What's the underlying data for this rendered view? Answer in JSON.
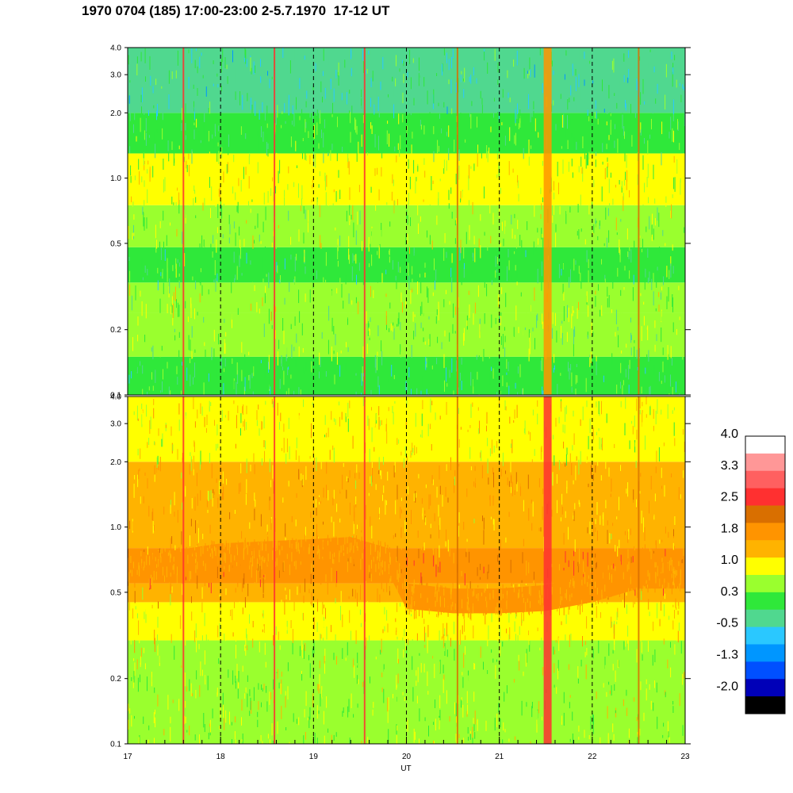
{
  "header": {
    "title": "1970 0704 (185) 17:00-23:00 2-5.7.1970  17-12 UT"
  },
  "chart_data": {
    "type": "heatmap",
    "title": "1970 0704 (185) 17:00-23:00 2-5.7.1970  17-12 UT",
    "xlabel": "UT",
    "xlim": [
      17,
      23
    ],
    "x_ticks": [
      "17",
      "18",
      "19",
      "20",
      "21",
      "22",
      "23"
    ],
    "x_minor_step": 0.2,
    "grid_vertical_dashed": [
      18,
      19,
      20,
      21,
      22
    ],
    "panels": [
      {
        "name": "",
        "y_scale": "log",
        "ylim": [
          0.1,
          4.0
        ],
        "y_ticks": [
          {
            "value": 0.1,
            "label": "0.1"
          },
          {
            "value": 0.2,
            "label": "0.2"
          },
          {
            "value": 0.5,
            "label": "0.5"
          },
          {
            "value": 1.0,
            "label": "1.0"
          },
          {
            "value": 2.0,
            "label": "2.0"
          },
          {
            "value": 3.0,
            "label": "3.0"
          },
          {
            "value": 4.0,
            "label": "4.0"
          }
        ],
        "bands": [
          {
            "y0": 0.1,
            "y1": 0.15,
            "level": 0.3
          },
          {
            "y0": 0.15,
            "y1": 0.24,
            "level": 0.7
          },
          {
            "y0": 0.24,
            "y1": 0.33,
            "level": 0.85
          },
          {
            "y0": 0.33,
            "y1": 0.48,
            "level": 0.4
          },
          {
            "y0": 0.48,
            "y1": 0.75,
            "level": 0.8
          },
          {
            "y0": 0.75,
            "y1": 1.3,
            "level": 1.0
          },
          {
            "y0": 1.3,
            "y1": 2.0,
            "level": 0.6
          },
          {
            "y0": 2.0,
            "y1": 4.0,
            "level": 0.1
          }
        ],
        "spikes": [
          {
            "x": 17.6,
            "level": 2.5
          },
          {
            "x": 18.58,
            "level": 2.5
          },
          {
            "x": 19.55,
            "level": 2.5
          },
          {
            "x": 20.55,
            "level": 2.3
          },
          {
            "x": 21.52,
            "level": 2.0
          },
          {
            "x": 22.5,
            "level": 2.2
          }
        ]
      },
      {
        "name": "",
        "y_scale": "log",
        "ylim": [
          0.1,
          4.0
        ],
        "y_ticks": [
          {
            "value": 0.1,
            "label": "0.1"
          },
          {
            "value": 0.2,
            "label": "0.2"
          },
          {
            "value": 0.5,
            "label": "0.5"
          },
          {
            "value": 1.0,
            "label": "1.0"
          },
          {
            "value": 2.0,
            "label": "2.0"
          },
          {
            "value": 3.0,
            "label": "3.0"
          },
          {
            "value": 4.0,
            "label": "4.0"
          }
        ],
        "bands": [
          {
            "y0": 0.1,
            "y1": 0.3,
            "level": 0.9
          },
          {
            "y0": 0.3,
            "y1": 0.45,
            "level": 1.3
          },
          {
            "y0": 0.45,
            "y1": 0.55,
            "level": 1.6
          },
          {
            "y0": 0.55,
            "y1": 0.8,
            "level": 2.1
          },
          {
            "y0": 0.8,
            "y1": 2.0,
            "level": 1.6
          },
          {
            "y0": 2.0,
            "y1": 4.0,
            "level": 1.2
          }
        ],
        "ridge": {
          "level": 2.1,
          "x": [
            17.0,
            17.5,
            18.0,
            18.5,
            19.0,
            19.4,
            19.8,
            20.0,
            20.5,
            21.0,
            21.5,
            22.0,
            22.5,
            23.0
          ],
          "lo": [
            0.56,
            0.6,
            0.66,
            0.68,
            0.7,
            0.72,
            0.62,
            0.42,
            0.4,
            0.4,
            0.41,
            0.45,
            0.52,
            0.52
          ],
          "hi": [
            0.72,
            0.78,
            0.84,
            0.86,
            0.88,
            0.9,
            0.8,
            0.55,
            0.52,
            0.52,
            0.54,
            0.6,
            0.7,
            0.68
          ]
        },
        "spikes": [
          {
            "x": 17.6,
            "level": 2.5
          },
          {
            "x": 18.58,
            "level": 2.5
          },
          {
            "x": 19.55,
            "level": 2.5
          },
          {
            "x": 20.55,
            "level": 2.3
          },
          {
            "x": 21.52,
            "level": 2.6
          },
          {
            "x": 22.5,
            "level": 2.2
          }
        ]
      }
    ],
    "colorbar": {
      "labels": [
        "4.0",
        "3.3",
        "2.5",
        "1.8",
        "1.0",
        "0.3",
        "-0.5",
        "-1.3",
        "-2.0"
      ],
      "colors": [
        "#ffffff",
        "#ff9797",
        "#ff6060",
        "#ff3030",
        "#d96f00",
        "#ff9400",
        "#ffb300",
        "#ffff00",
        "#9aff2e",
        "#2fe83a",
        "#50d88f",
        "#2ac8ff",
        "#0096ff",
        "#0050ff",
        "#0000b8",
        "#000000"
      ]
    }
  }
}
